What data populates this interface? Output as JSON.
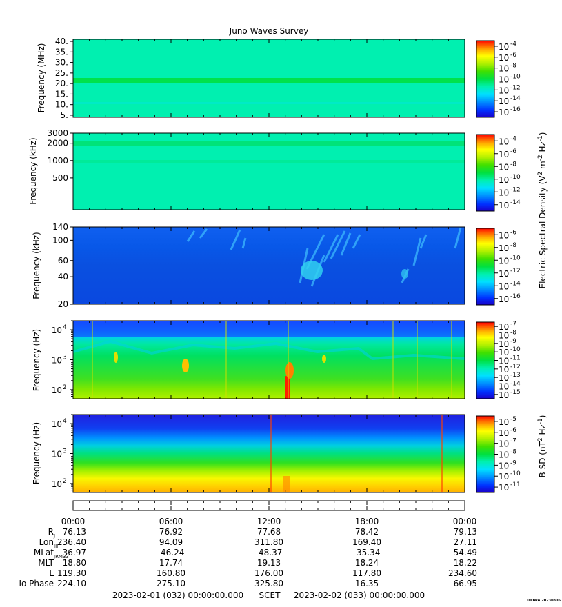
{
  "title": "Juno Waves Survey",
  "colors": {
    "colormap": [
      "#1a00c8",
      "#0040ff",
      "#00a0ff",
      "#00e0ff",
      "#00f0c0",
      "#00e060",
      "#20e000",
      "#a0f000",
      "#ffff00",
      "#ffc000",
      "#ff7000",
      "#ff1000"
    ]
  },
  "panels": [
    {
      "ylabel": "Frequency (MHz)",
      "ticks": [
        "5.",
        "10.",
        "15.",
        "20.",
        "25.",
        "30.",
        "35.",
        "40."
      ],
      "bar_labels": [
        "10",
        "10",
        "10",
        "10",
        "10",
        "10",
        "10"
      ],
      "bar_exps": [
        "-4",
        "-6",
        "-8",
        "-10",
        "-12",
        "-14",
        "-16"
      ]
    },
    {
      "ylabel": "Frequency (kHz)",
      "ticks": [
        "500",
        "1000",
        "2000",
        "3000"
      ],
      "bar_labels": [
        "10",
        "10",
        "10",
        "10",
        "10",
        "10"
      ],
      "bar_exps": [
        "-4",
        "-6",
        "-8",
        "-10",
        "-12",
        "-14"
      ]
    },
    {
      "ylabel": "Frequency (kHz)",
      "ticks": [
        "20",
        "40",
        "60",
        "100",
        "140"
      ],
      "bar_labels": [
        "10",
        "10",
        "10",
        "10",
        "10",
        "10"
      ],
      "bar_exps": [
        "-6",
        "-8",
        "-10",
        "-12",
        "-14",
        "-16"
      ]
    },
    {
      "ylabel": "Frequency (Hz)",
      "ticks": [
        "10",
        "10",
        "10"
      ],
      "tick_exps": [
        "2",
        "3",
        "4"
      ],
      "bar_labels": [
        "10",
        "10",
        "10",
        "10",
        "10",
        "10",
        "10",
        "10",
        "10"
      ],
      "bar_exps": [
        "-7",
        "-8",
        "-9",
        "-10",
        "-11",
        "-12",
        "-13",
        "-14",
        "-15"
      ]
    },
    {
      "ylabel": "Frequency (Hz)",
      "ticks": [
        "10",
        "10",
        "10"
      ],
      "tick_exps": [
        "2",
        "3",
        "4"
      ],
      "bar_labels": [
        "10",
        "10",
        "10",
        "10",
        "10",
        "10",
        "10"
      ],
      "bar_exps": [
        "-5",
        "-6",
        "-7",
        "-8",
        "-9",
        "-10",
        "-11"
      ]
    }
  ],
  "colorbar_title_e": {
    "base": "Electric Spectral Density (V",
    "e1": "2",
    "mid": " m",
    "e2": "-2",
    "mid2": " Hz",
    "e3": "-1",
    "end": ")"
  },
  "colorbar_title_b": {
    "base": "B SD (nT",
    "e1": "2",
    "mid": " Hz",
    "e2": "-1",
    "end": ")"
  },
  "ephemeris": {
    "times": [
      "00:00",
      "06:00",
      "12:00",
      "18:00",
      "00:00"
    ],
    "rows": [
      {
        "label": "R",
        "sub": "J",
        "values": [
          "76.13",
          "76.92",
          "77.68",
          "78.42",
          "79.13"
        ]
      },
      {
        "label": "Lon",
        "sub": "III",
        "values": [
          "236.40",
          "94.09",
          "311.80",
          "169.40",
          "27.11"
        ]
      },
      {
        "label": "MLat",
        "sub": "JRM33",
        "values": [
          "-36.97",
          "-46.24",
          "-48.37",
          "-35.34",
          "-54.49"
        ]
      },
      {
        "label": "MLT",
        "sub": "",
        "values": [
          "18.80",
          "17.74",
          "19.13",
          "18.24",
          "18.22"
        ]
      },
      {
        "label": "L",
        "sub": "",
        "values": [
          "119.30",
          "160.80",
          "176.00",
          "117.80",
          "234.60"
        ]
      },
      {
        "label": "Io Phase",
        "sub": "",
        "values": [
          "224.10",
          "275.10",
          "325.80",
          "16.35",
          "66.95"
        ]
      }
    ]
  },
  "footer": {
    "start": "2023-02-01 (032) 00:00:00.000",
    "scet": "SCET",
    "end": "2023-02-02 (033) 00:00:00.000",
    "stamp": "UIOWA 20230806"
  },
  "chart_data": {
    "type": "heatmap",
    "title": "Juno Waves Survey",
    "x_range": [
      "2023-02-01 00:00",
      "2023-02-02 00:00"
    ],
    "x_ticks": [
      "00:00",
      "06:00",
      "12:00",
      "18:00",
      "00:00"
    ],
    "panels": [
      {
        "ylabel": "Frequency (MHz)",
        "ylim": [
          4,
          41
        ],
        "zlim": [
          "1e-16",
          "1e-4"
        ]
      },
      {
        "ylabel": "Frequency (kHz)",
        "ylim": [
          140,
          3000
        ],
        "yscale": "log",
        "zlim": [
          "1e-14",
          "1e-4"
        ]
      },
      {
        "ylabel": "Frequency (kHz)",
        "ylim": [
          20,
          140
        ],
        "yscale": "log",
        "zlim": [
          "1e-16",
          "1e-6"
        ]
      },
      {
        "ylabel": "Frequency (Hz)",
        "ylim": [
          50,
          20000
        ],
        "yscale": "log",
        "zlim": [
          "1e-15",
          "1e-7"
        ]
      },
      {
        "ylabel": "Frequency (Hz)",
        "ylim": [
          50,
          20000
        ],
        "yscale": "log",
        "zlim": [
          "1e-11",
          "1e-5"
        ]
      }
    ]
  }
}
